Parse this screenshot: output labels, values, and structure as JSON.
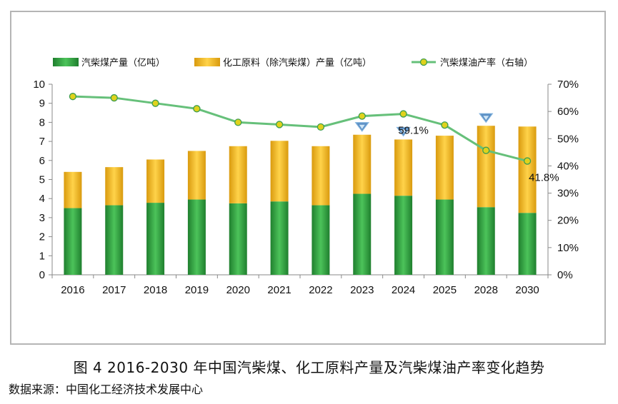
{
  "chart_data": {
    "type": "bar",
    "categories": [
      "2016",
      "2017",
      "2018",
      "2019",
      "2020",
      "2021",
      "2022",
      "2023",
      "2024",
      "2025",
      "2028",
      "2030"
    ],
    "series": [
      {
        "name": "汽柴煤产量（亿吨）",
        "kind": "stacked-bar",
        "axis": "left",
        "color": "#2e9e3e",
        "values": [
          3.5,
          3.65,
          3.78,
          3.95,
          3.75,
          3.85,
          3.65,
          4.25,
          4.15,
          3.95,
          3.55,
          3.25
        ]
      },
      {
        "name": "化工原料（除汽柴煤）产量（亿吨）",
        "kind": "stacked-bar",
        "axis": "left",
        "color": "#f2b21c",
        "values": [
          1.9,
          2.0,
          2.27,
          2.55,
          3.0,
          3.18,
          3.1,
          3.1,
          2.95,
          3.35,
          4.27,
          4.53
        ]
      },
      {
        "name": "汽柴煤油产率（右轴）",
        "kind": "line",
        "axis": "right",
        "color": "#66c07a",
        "values": [
          65.5,
          65.0,
          63.0,
          61.0,
          56.0,
          55.2,
          54.3,
          58.3,
          59.1,
          55.0,
          45.7,
          41.8
        ]
      }
    ],
    "y_left": {
      "min": 0,
      "max": 10,
      "ticks": [
        "0",
        "1",
        "2",
        "3",
        "4",
        "5",
        "6",
        "7",
        "8",
        "9",
        "10"
      ]
    },
    "y_right": {
      "min": 0,
      "max": 70,
      "ticks": [
        "0%",
        "10%",
        "20%",
        "30%",
        "40%",
        "50%",
        "60%",
        "70%"
      ]
    },
    "annotations": [
      {
        "category": "2024",
        "text": "59.1%"
      },
      {
        "category": "2030",
        "text": "41.8%"
      }
    ],
    "markers": [
      "2023",
      "2024",
      "2028"
    ],
    "legend_position": "top",
    "grid": false,
    "title": "图 4  2016-2030 年中国汽柴煤、化工原料产量及汽柴煤油产率变化趋势",
    "source": "数据来源：中国化工经济技术发展中心"
  }
}
